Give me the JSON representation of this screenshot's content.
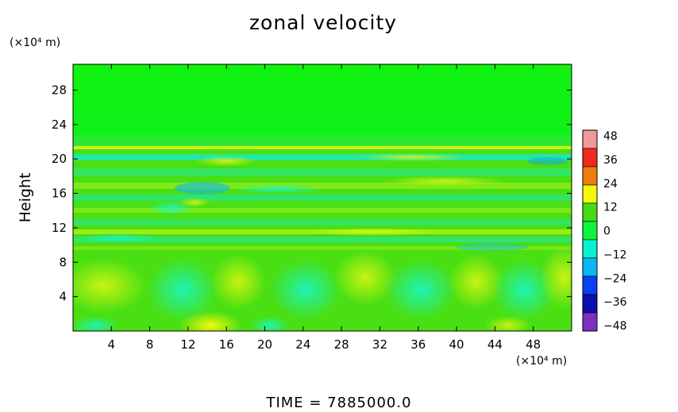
{
  "chart_data": {
    "type": "heatmap",
    "title": "zonal velocity",
    "xlabel": "",
    "ylabel": "Height",
    "x_unit": "(×10⁴ m)",
    "y_unit": "(×10⁴ m)",
    "xlim": [
      0,
      52
    ],
    "ylim": [
      0,
      31
    ],
    "x_ticks": [
      4,
      8,
      12,
      16,
      20,
      24,
      28,
      32,
      36,
      40,
      44,
      48
    ],
    "y_ticks": [
      4,
      8,
      12,
      16,
      20,
      24,
      28
    ],
    "colorbar": {
      "ticks": [
        48,
        36,
        24,
        12,
        0,
        -12,
        -24,
        -36,
        -48
      ],
      "tick_labels": [
        "48",
        "36",
        "24",
        "12",
        "0",
        "−12",
        "−24",
        "−36",
        "−48"
      ],
      "range": [
        -48,
        48
      ],
      "colors": [
        "#f19999",
        "#ef2b1c",
        "#ee7d14",
        "#f1f70d",
        "#45db17",
        "#0ff53e",
        "#0bf0d0",
        "#0ab7f2",
        "#0a3ff5",
        "#0a10b0",
        "#7f2fc0"
      ]
    },
    "dominant_values": [
      {
        "height_range": [
          21,
          31
        ],
        "u": 0
      },
      {
        "height_range": [
          0,
          21
        ],
        "u_min": -12,
        "u_max": 18
      }
    ],
    "footer": "TIME  =  7885000.0"
  }
}
